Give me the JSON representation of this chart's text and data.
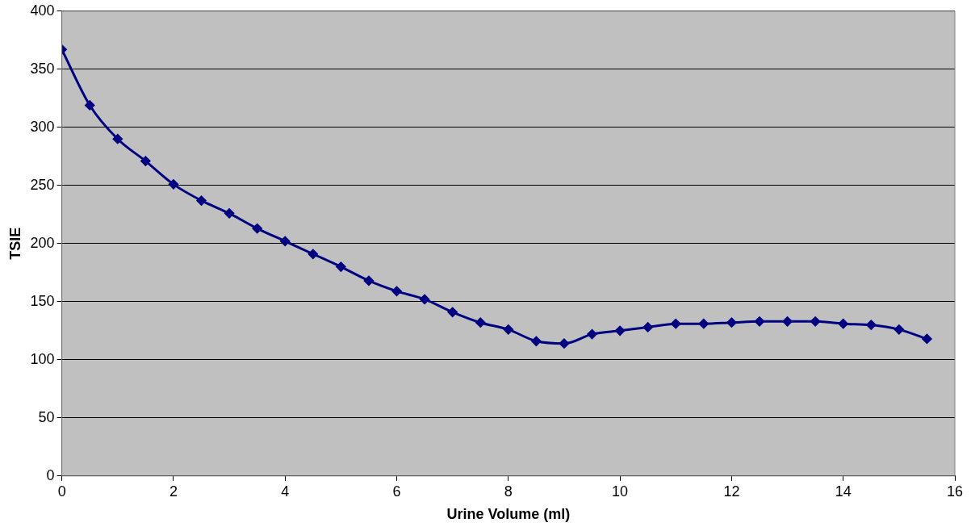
{
  "chart_data": {
    "type": "line",
    "xlabel": "Urine Volume (ml)",
    "ylabel": "TSIE",
    "x": [
      0,
      0.5,
      1,
      1.5,
      2,
      2.5,
      3,
      3.5,
      4,
      4.5,
      5,
      5.5,
      6,
      6.5,
      7,
      7.5,
      8,
      8.5,
      9,
      9.5,
      10,
      10.5,
      11,
      11.5,
      12,
      12.5,
      13,
      13.5,
      14,
      14.5,
      15,
      15.5
    ],
    "series": [
      {
        "color": "#000080",
        "values": [
          367,
          319,
          290,
          271,
          251,
          237,
          226,
          213,
          202,
          191,
          180,
          168,
          159,
          152,
          141,
          132,
          126,
          116,
          114,
          122,
          125,
          128,
          131,
          131,
          132,
          133,
          133,
          133,
          131,
          130,
          126,
          118
        ]
      }
    ],
    "xlim": [
      0,
      16
    ],
    "xticks": [
      0,
      2,
      4,
      6,
      8,
      10,
      12,
      14,
      16
    ],
    "ylim": [
      0,
      400
    ],
    "yticks": [
      0,
      50,
      100,
      150,
      200,
      250,
      300,
      350,
      400
    ],
    "grid": "y",
    "legend": false,
    "marker": "diamond",
    "line_style": "solid"
  }
}
